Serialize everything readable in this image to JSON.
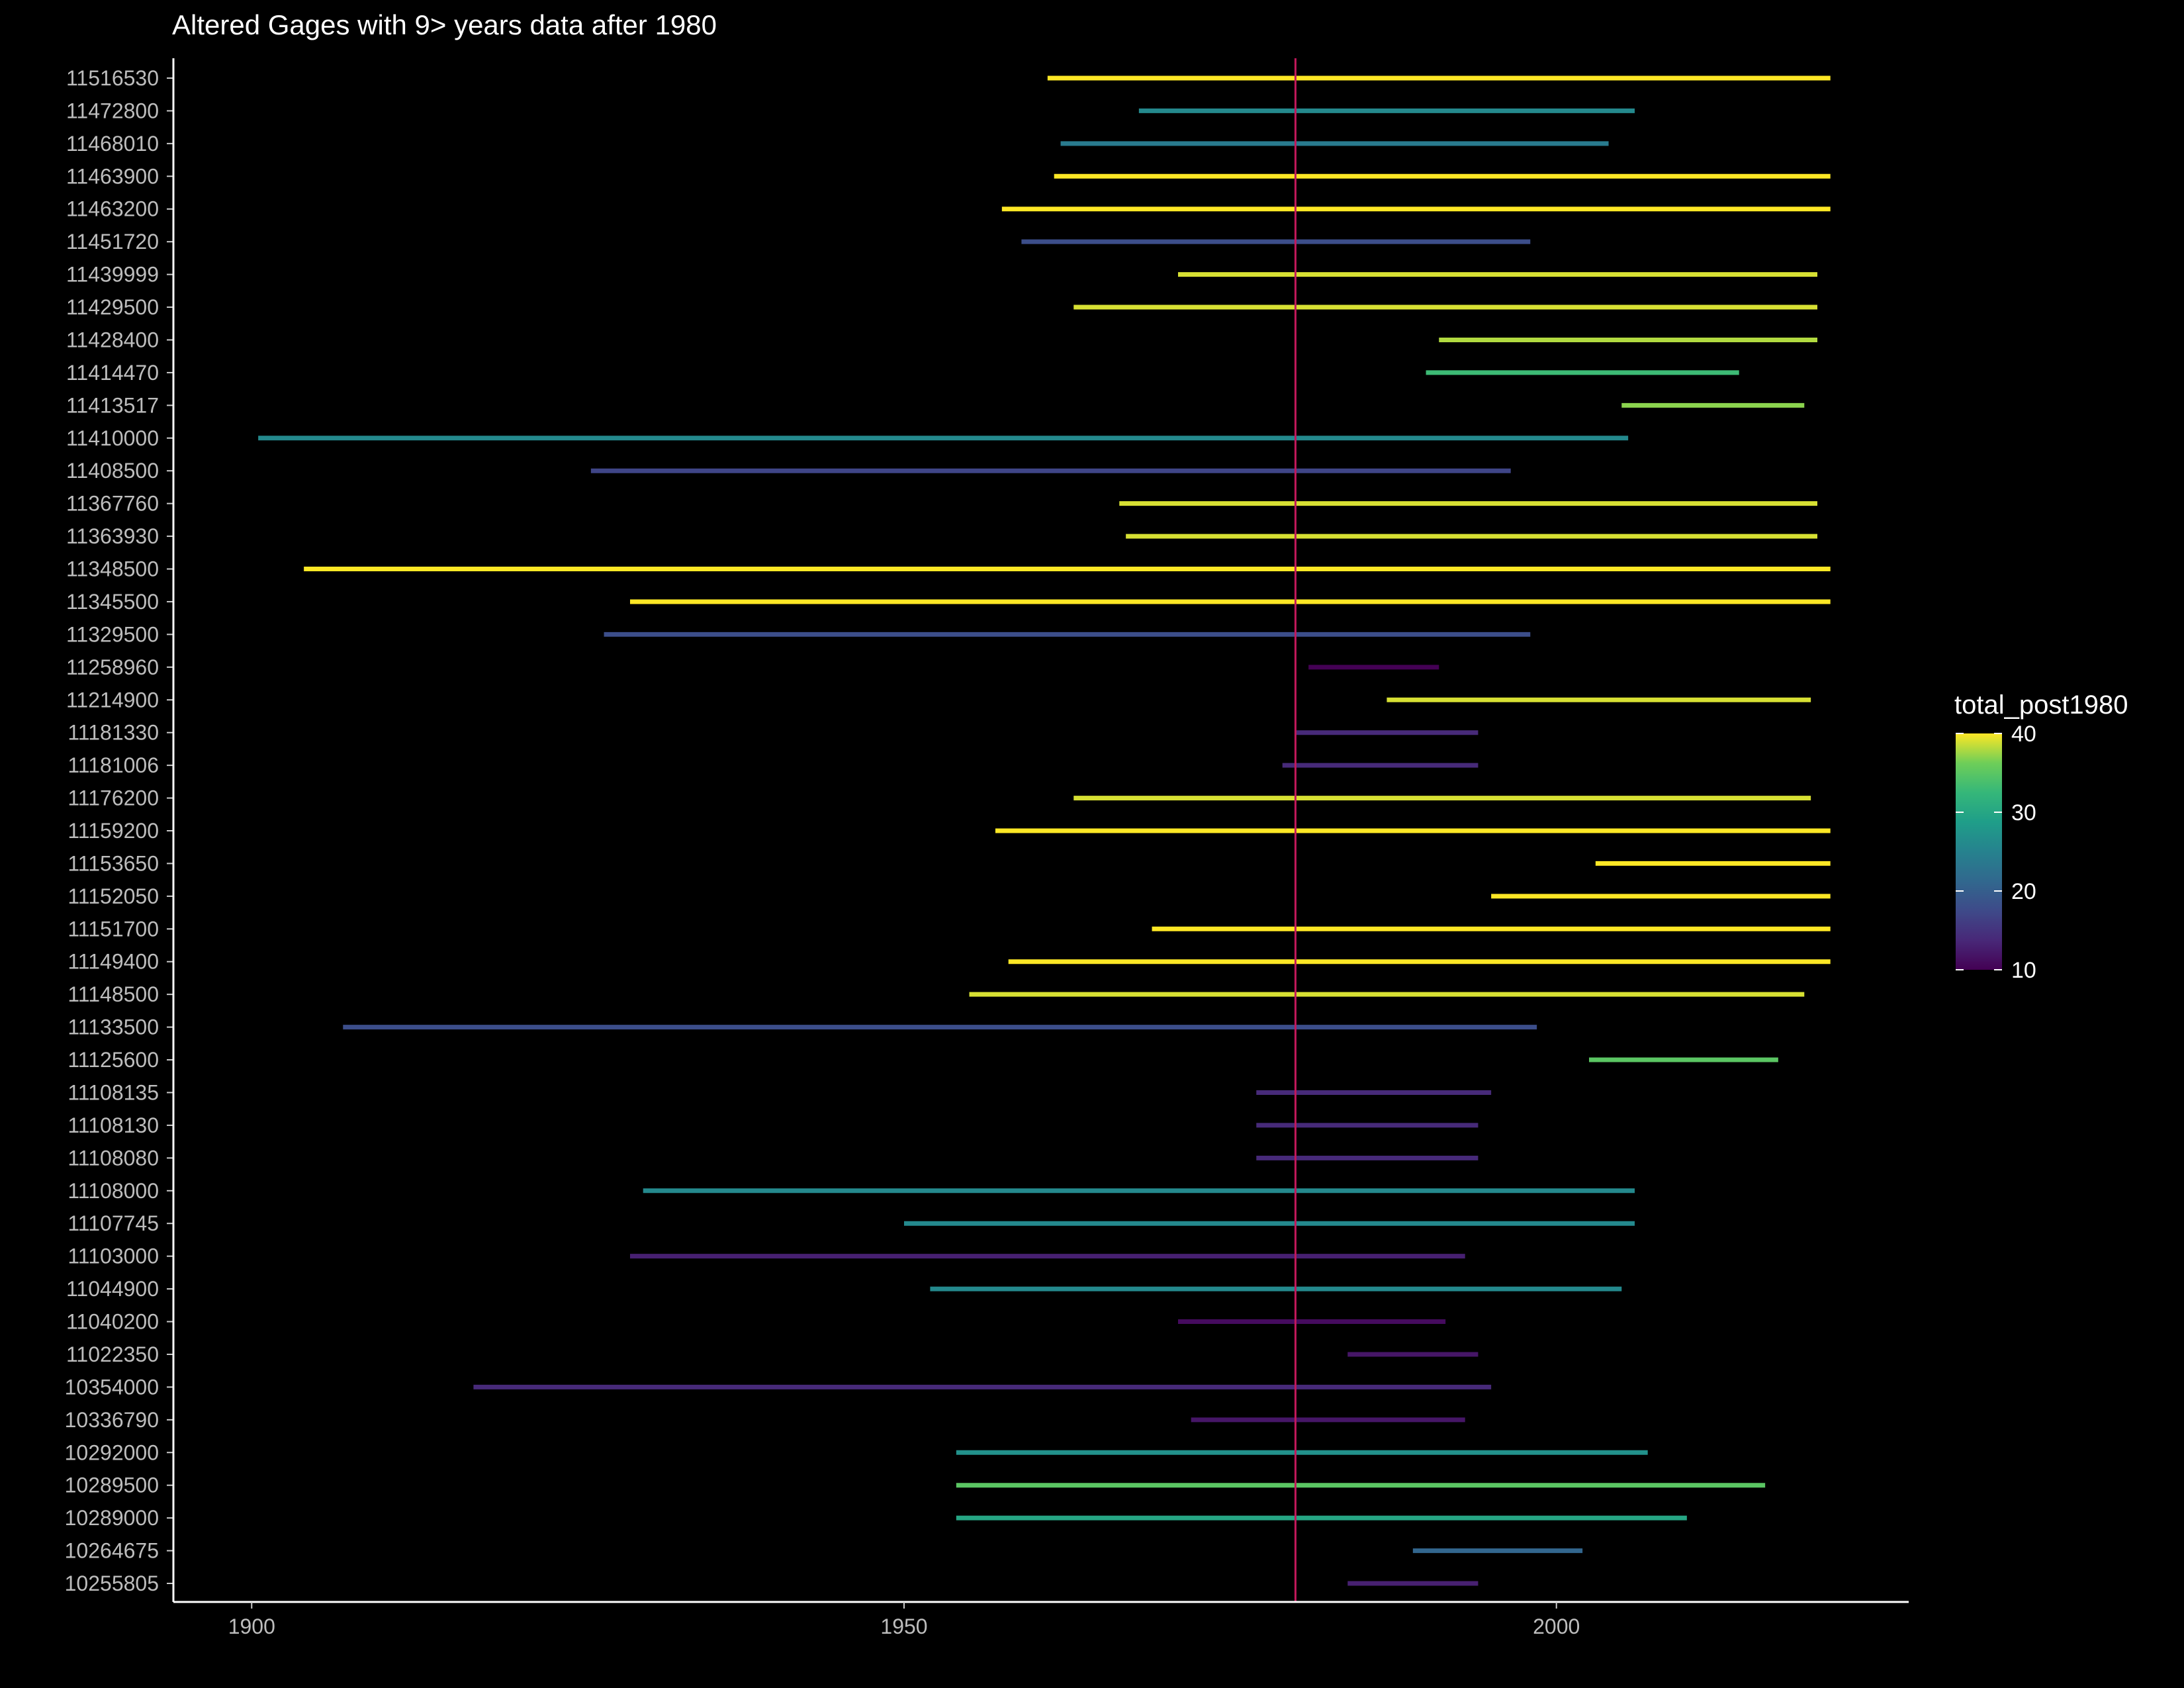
{
  "chart_data": {
    "type": "range",
    "title": "Altered Gages with 9> years data after 1980",
    "xlabel": "",
    "ylabel": "",
    "xlim": [
      1894,
      2027
    ],
    "x_ticks": [
      1900,
      1950,
      2000
    ],
    "reference_line": {
      "x": 1980,
      "color": "#c2185b"
    },
    "color_scale": {
      "name": "total_post1980",
      "type": "viridis",
      "min": 10,
      "max": 40,
      "ticks": [
        10,
        20,
        30,
        40
      ]
    },
    "grid": false,
    "legend_position": "right",
    "series": [
      {
        "site": "11516530",
        "start": 1961,
        "end": 2021,
        "total_post1980": 40
      },
      {
        "site": "11472800",
        "start": 1968,
        "end": 2006,
        "total_post1980": 26
      },
      {
        "site": "11468010",
        "start": 1962,
        "end": 2004,
        "total_post1980": 24
      },
      {
        "site": "11463900",
        "start": 1961.5,
        "end": 2021,
        "total_post1980": 40
      },
      {
        "site": "11463200",
        "start": 1957.5,
        "end": 2021,
        "total_post1980": 40
      },
      {
        "site": "11451720",
        "start": 1959,
        "end": 1998,
        "total_post1980": 18
      },
      {
        "site": "11439999",
        "start": 1971,
        "end": 2020,
        "total_post1980": 39
      },
      {
        "site": "11429500",
        "start": 1963,
        "end": 2020,
        "total_post1980": 39
      },
      {
        "site": "11428400",
        "start": 1991,
        "end": 2020,
        "total_post1980": 38
      },
      {
        "site": "11414470",
        "start": 1990,
        "end": 2014,
        "total_post1980": 33
      },
      {
        "site": "11413517",
        "start": 2005,
        "end": 2019,
        "total_post1980": 37
      },
      {
        "site": "11410000",
        "start": 1900.5,
        "end": 2005.5,
        "total_post1980": 26
      },
      {
        "site": "11408500",
        "start": 1926,
        "end": 1996.5,
        "total_post1980": 17
      },
      {
        "site": "11367760",
        "start": 1966.5,
        "end": 2020,
        "total_post1980": 39
      },
      {
        "site": "11363930",
        "start": 1967,
        "end": 2020,
        "total_post1980": 39
      },
      {
        "site": "11348500",
        "start": 1904,
        "end": 2021,
        "total_post1980": 40
      },
      {
        "site": "11345500",
        "start": 1929,
        "end": 2021,
        "total_post1980": 40
      },
      {
        "site": "11329500",
        "start": 1927,
        "end": 1998,
        "total_post1980": 18
      },
      {
        "site": "11258960",
        "start": 1981,
        "end": 1991,
        "total_post1980": 10
      },
      {
        "site": "11214900",
        "start": 1987,
        "end": 2019.5,
        "total_post1980": 39
      },
      {
        "site": "11181330",
        "start": 1980,
        "end": 1994,
        "total_post1980": 14
      },
      {
        "site": "11181006",
        "start": 1979,
        "end": 1994,
        "total_post1980": 14
      },
      {
        "site": "11176200",
        "start": 1963,
        "end": 2019.5,
        "total_post1980": 39
      },
      {
        "site": "11159200",
        "start": 1957,
        "end": 2021,
        "total_post1980": 40
      },
      {
        "site": "11153650",
        "start": 2003,
        "end": 2021,
        "total_post1980": 40
      },
      {
        "site": "11152050",
        "start": 1995,
        "end": 2021,
        "total_post1980": 40
      },
      {
        "site": "11151700",
        "start": 1969,
        "end": 2021,
        "total_post1980": 40
      },
      {
        "site": "11149400",
        "start": 1958,
        "end": 2021,
        "total_post1980": 40
      },
      {
        "site": "11148500",
        "start": 1955,
        "end": 2019,
        "total_post1980": 39
      },
      {
        "site": "11133500",
        "start": 1907,
        "end": 1998.5,
        "total_post1980": 18
      },
      {
        "site": "11125600",
        "start": 2002.5,
        "end": 2017,
        "total_post1980": 35
      },
      {
        "site": "11108135",
        "start": 1977,
        "end": 1995,
        "total_post1980": 14
      },
      {
        "site": "11108130",
        "start": 1977,
        "end": 1994,
        "total_post1980": 14
      },
      {
        "site": "11108080",
        "start": 1977,
        "end": 1994,
        "total_post1980": 14
      },
      {
        "site": "11108000",
        "start": 1930,
        "end": 2006,
        "total_post1980": 26
      },
      {
        "site": "11107745",
        "start": 1950,
        "end": 2006,
        "total_post1980": 26
      },
      {
        "site": "11103000",
        "start": 1929,
        "end": 1993,
        "total_post1980": 13
      },
      {
        "site": "11044900",
        "start": 1952,
        "end": 2005,
        "total_post1980": 26
      },
      {
        "site": "11040200",
        "start": 1971,
        "end": 1991.5,
        "total_post1980": 11
      },
      {
        "site": "11022350",
        "start": 1984,
        "end": 1994,
        "total_post1980": 12
      },
      {
        "site": "10354000",
        "start": 1917,
        "end": 1995,
        "total_post1980": 14
      },
      {
        "site": "10336790",
        "start": 1972,
        "end": 1993,
        "total_post1980": 12
      },
      {
        "site": "10292000",
        "start": 1954,
        "end": 2007,
        "total_post1980": 27
      },
      {
        "site": "10289500",
        "start": 1954,
        "end": 2016,
        "total_post1980": 35
      },
      {
        "site": "10289000",
        "start": 1954,
        "end": 2010,
        "total_post1980": 30
      },
      {
        "site": "10264675",
        "start": 1989,
        "end": 2002,
        "total_post1980": 21
      },
      {
        "site": "10255805",
        "start": 1984,
        "end": 1994,
        "total_post1980": 13
      }
    ]
  }
}
